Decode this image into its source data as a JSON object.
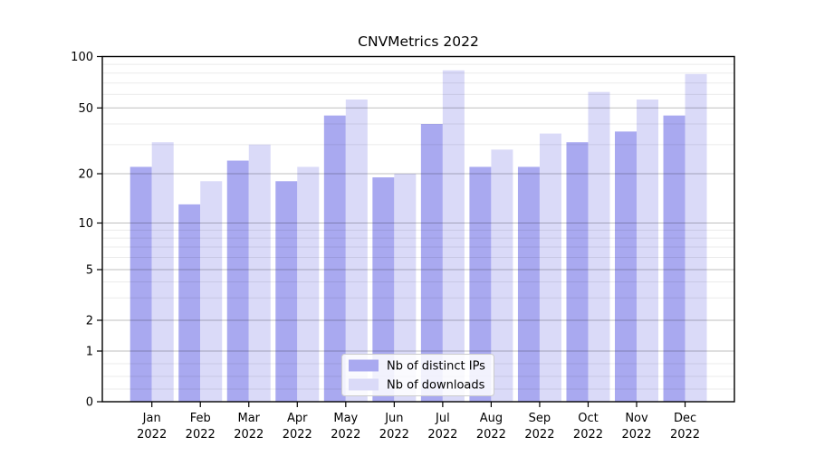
{
  "title": "CNVMetrics 2022",
  "chart_data": {
    "type": "bar",
    "title": "CNVMetrics 2022",
    "categories": [
      "Jan",
      "Feb",
      "Mar",
      "Apr",
      "May",
      "Jun",
      "Jul",
      "Aug",
      "Sep",
      "Oct",
      "Nov",
      "Dec"
    ],
    "category_line2": "2022",
    "series": [
      {
        "name": "Nb of distinct IPs",
        "color": "#a9a9f0",
        "values": [
          22,
          13,
          24,
          18,
          45,
          19,
          40,
          22,
          22,
          31,
          36,
          45
        ]
      },
      {
        "name": "Nb of downloads",
        "color": "#dadaf8",
        "values": [
          31,
          18,
          30,
          22,
          56,
          20,
          83,
          28,
          35,
          62,
          56,
          79
        ]
      }
    ],
    "xlabel": "",
    "ylabel": "",
    "yscale": "symlog",
    "yticks": [
      0,
      1,
      2,
      5,
      10,
      20,
      50,
      100
    ],
    "ylim": [
      0,
      100
    ],
    "grid": "major and minor horizontal gridlines",
    "legend_position": "lower center"
  },
  "colors": {
    "background": "#ffffff",
    "spine": "#000000",
    "major_grid": "rgba(0,0,0,0.25)",
    "minor_grid": "rgba(0,0,0,0.08)",
    "legend_border": "#cccccc",
    "legend_fill": "rgba(255,255,255,0.85)"
  }
}
